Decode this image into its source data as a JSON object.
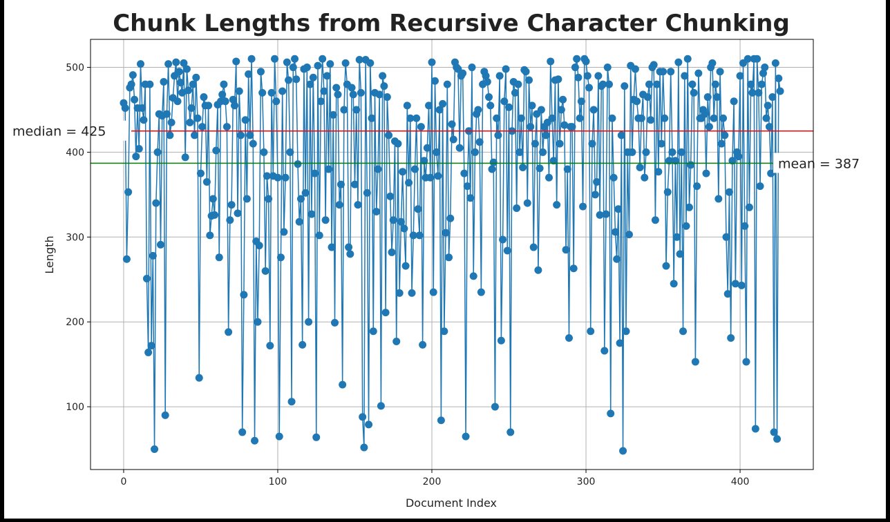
{
  "chart_data": {
    "type": "line",
    "title": "Chunk Lengths from Recursive Character Chunking",
    "xlabel": "Document Index",
    "ylabel": "Length",
    "xlim": [
      -21.5,
      447.5
    ],
    "ylim": [
      26,
      533
    ],
    "xticks": [
      0,
      100,
      200,
      300,
      400
    ],
    "yticks": [
      100,
      200,
      300,
      400,
      500
    ],
    "grid": true,
    "marker": "circle",
    "series_color": "#1f77b4",
    "values": [
      458,
      452,
      274,
      353,
      476,
      480,
      491,
      462,
      395,
      452,
      404,
      504,
      452,
      438,
      480,
      251,
      164,
      480,
      172,
      278,
      50,
      340,
      400,
      445,
      291,
      443,
      483,
      90,
      445,
      504,
      420,
      435,
      464,
      490,
      506,
      460,
      495,
      482,
      470,
      505,
      394,
      498,
      473,
      435,
      452,
      480,
      420,
      488,
      440,
      134,
      375,
      430,
      465,
      455,
      365,
      455,
      302,
      325,
      345,
      326,
      402,
      456,
      276,
      460,
      468,
      480,
      460,
      430,
      188,
      320,
      338,
      462,
      455,
      507,
      328,
      472,
      420,
      70,
      232,
      438,
      345,
      492,
      420,
      510,
      410,
      60,
      295,
      200,
      290,
      495,
      470,
      400,
      260,
      372,
      345,
      172,
      470,
      372,
      510,
      460,
      370,
      65,
      276,
      472,
      306,
      370,
      506,
      485,
      400,
      106,
      500,
      510,
      486,
      386,
      318,
      345,
      173,
      498,
      352,
      500,
      200,
      480,
      327,
      488,
      375,
      64,
      502,
      302,
      460,
      510,
      472,
      320,
      490,
      380,
      504,
      288,
      444,
      199,
      476,
      468,
      338,
      362,
      126,
      450,
      505,
      480,
      288,
      280,
      476,
      468,
      362,
      450,
      338,
      509,
      470,
      88,
      52,
      509,
      352,
      79,
      505,
      440,
      189,
      470,
      330,
      380,
      468,
      101,
      490,
      478,
      211,
      465,
      420,
      348,
      282,
      320,
      413,
      177,
      410,
      234,
      318,
      377,
      310,
      266,
      455,
      364,
      440,
      234,
      302,
      380,
      440,
      333,
      302,
      430,
      173,
      390,
      370,
      405,
      455,
      370,
      506,
      235,
      484,
      400,
      372,
      450,
      84,
      457,
      189,
      305,
      480,
      276,
      322,
      433,
      415,
      506,
      500,
      498,
      405,
      490,
      493,
      375,
      65,
      360,
      425,
      346,
      500,
      254,
      400,
      445,
      450,
      412,
      235,
      480,
      495,
      490,
      483,
      465,
      455,
      380,
      388,
      100,
      440,
      420,
      490,
      178,
      297,
      460,
      498,
      284,
      453,
      70,
      425,
      483,
      470,
      334,
      480,
      400,
      440,
      382,
      497,
      495,
      340,
      485,
      430,
      455,
      288,
      410,
      445,
      261,
      381,
      450,
      400,
      430,
      420,
      435,
      370,
      507,
      440,
      390,
      485,
      338,
      486,
      410,
      450,
      462,
      432,
      285,
      380,
      181,
      430,
      430,
      263,
      500,
      510,
      488,
      440,
      460,
      336,
      510,
      507,
      490,
      476,
      189,
      410,
      450,
      350,
      365,
      490,
      326,
      478,
      480,
      166,
      327,
      500,
      480,
      92,
      440,
      370,
      306,
      274,
      333,
      175,
      420,
      48,
      478,
      189,
      400,
      303,
      502,
      400,
      462,
      498,
      460,
      440,
      382,
      440,
      468,
      370,
      400,
      465,
      480,
      438,
      500,
      503,
      320,
      480,
      377,
      495,
      410,
      495,
      440,
      266,
      353,
      390,
      495,
      400,
      245,
      390,
      300,
      506,
      280,
      400,
      189,
      490,
      313,
      510,
      335,
      385,
      480,
      470,
      153,
      360,
      493,
      440,
      440,
      450,
      445,
      375,
      465,
      430,
      500,
      505,
      440,
      480,
      465,
      345,
      495,
      410,
      440,
      420,
      300,
      233,
      353,
      181,
      390,
      460,
      245,
      400,
      395,
      490,
      243,
      505,
      313,
      153,
      510,
      335,
      480,
      470,
      510,
      74,
      510,
      470,
      360,
      480,
      493,
      500,
      440,
      455,
      430,
      375,
      465,
      70,
      505,
      62,
      487,
      472
    ],
    "reference_lines": [
      {
        "label": "median = 425",
        "value": 425,
        "color": "#ff0000"
      },
      {
        "label": "mean = 387",
        "value": 387,
        "color": "#008000"
      }
    ]
  }
}
